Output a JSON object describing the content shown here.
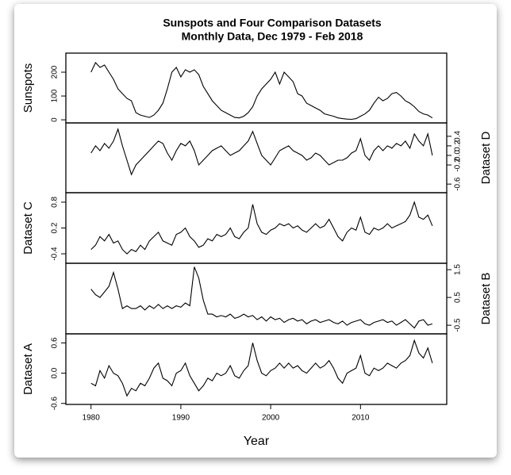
{
  "chart_data": {
    "type": "line",
    "title": "Sunspots and Four Comparison Datasets",
    "subtitle": "Monthly Data, Dec 1979 - Feb 2018",
    "xlabel": "Year",
    "color": "#000000",
    "xlim": [
      1977.2,
      2019.6
    ],
    "xticks": [
      1980,
      1990,
      2000,
      2010
    ],
    "x": [
      1980,
      1980.5,
      1981,
      1981.5,
      1982,
      1982.5,
      1983,
      1983.5,
      1984,
      1984.5,
      1985,
      1985.5,
      1986,
      1986.5,
      1987,
      1987.5,
      1988,
      1988.5,
      1989,
      1989.5,
      1990,
      1990.5,
      1991,
      1991.5,
      1992,
      1992.5,
      1993,
      1993.5,
      1994,
      1994.5,
      1995,
      1995.5,
      1996,
      1996.5,
      1997,
      1997.5,
      1998,
      1998.5,
      1999,
      1999.5,
      2000,
      2000.5,
      2001,
      2001.5,
      2002,
      2002.5,
      2003,
      2003.5,
      2004,
      2004.5,
      2005,
      2005.5,
      2006,
      2006.5,
      2007,
      2007.5,
      2008,
      2008.5,
      2009,
      2009.5,
      2010,
      2010.5,
      2011,
      2011.5,
      2012,
      2012.5,
      2013,
      2013.5,
      2014,
      2014.5,
      2015,
      2015.5,
      2016,
      2016.5,
      2017,
      2017.5,
      2018
    ],
    "series": [
      {
        "name": "Sunspots",
        "side": "left",
        "ylim": [
          -13,
          280
        ],
        "yticks": [
          0,
          100,
          200
        ],
        "values": [
          200,
          240,
          220,
          230,
          200,
          170,
          130,
          110,
          90,
          80,
          30,
          20,
          15,
          10,
          20,
          40,
          70,
          130,
          200,
          220,
          180,
          210,
          200,
          210,
          190,
          140,
          110,
          80,
          60,
          40,
          30,
          20,
          10,
          8,
          15,
          30,
          55,
          100,
          130,
          150,
          170,
          200,
          150,
          200,
          180,
          160,
          110,
          100,
          70,
          60,
          50,
          40,
          25,
          20,
          15,
          8,
          5,
          3,
          2,
          5,
          15,
          25,
          40,
          70,
          95,
          80,
          90,
          110,
          115,
          100,
          80,
          70,
          55,
          35,
          25,
          20,
          8
        ]
      },
      {
        "name": "Dataset D",
        "side": "right",
        "ylim": [
          -0.78,
          0.68
        ],
        "yticks": [
          -0.6,
          -0.2,
          {
            "value": 0,
            "label": "0.0"
          },
          0.2,
          0.4
        ],
        "values": [
          0.05,
          0.2,
          0.1,
          0.25,
          0.15,
          0.3,
          0.55,
          0.2,
          -0.1,
          -0.4,
          -0.2,
          -0.1,
          0.0,
          0.1,
          0.2,
          0.3,
          0.25,
          0.05,
          -0.1,
          0.1,
          0.25,
          0.2,
          0.3,
          0.1,
          -0.2,
          -0.1,
          0.0,
          0.1,
          0.15,
          0.2,
          0.1,
          0.0,
          0.05,
          0.1,
          0.2,
          0.3,
          0.5,
          0.25,
          0.0,
          -0.1,
          -0.2,
          -0.05,
          0.1,
          0.15,
          0.2,
          0.1,
          0.05,
          0.0,
          -0.1,
          -0.05,
          0.05,
          0.0,
          -0.1,
          -0.2,
          -0.15,
          -0.1,
          -0.1,
          -0.05,
          0.05,
          0.1,
          0.35,
          0.0,
          -0.1,
          0.1,
          0.2,
          0.1,
          0.2,
          0.15,
          0.25,
          0.2,
          0.3,
          0.15,
          0.45,
          0.3,
          0.2,
          0.45,
          0.0
        ]
      },
      {
        "name": "Dataset C",
        "side": "left",
        "ylim": [
          -0.62,
          1.02
        ],
        "yticks": [
          -0.4,
          0.2,
          0.8
        ],
        "values": [
          -0.3,
          -0.2,
          0.0,
          -0.1,
          0.05,
          -0.15,
          -0.1,
          -0.3,
          -0.4,
          -0.3,
          -0.35,
          -0.2,
          -0.3,
          -0.1,
          0.0,
          0.1,
          -0.1,
          -0.15,
          -0.2,
          0.05,
          0.1,
          0.2,
          0.0,
          -0.1,
          -0.25,
          -0.2,
          -0.05,
          -0.1,
          0.05,
          0.0,
          0.05,
          0.2,
          0.0,
          -0.05,
          0.1,
          0.2,
          0.75,
          0.3,
          0.1,
          0.05,
          0.15,
          0.2,
          0.3,
          0.25,
          0.3,
          0.2,
          0.25,
          0.15,
          0.1,
          0.2,
          0.3,
          0.2,
          0.25,
          0.4,
          0.2,
          0.0,
          -0.1,
          0.1,
          0.2,
          0.15,
          0.45,
          0.1,
          0.05,
          0.2,
          0.15,
          0.2,
          0.3,
          0.2,
          0.25,
          0.3,
          0.35,
          0.5,
          0.8,
          0.45,
          0.4,
          0.5,
          0.25
        ]
      },
      {
        "name": "Dataset B",
        "side": "right",
        "ylim": [
          -0.81,
          1.73
        ],
        "yticks": [
          -0.5,
          0.5,
          1.5
        ],
        "values": [
          0.8,
          0.6,
          0.5,
          0.7,
          0.9,
          1.4,
          0.8,
          0.1,
          0.2,
          0.1,
          0.1,
          0.2,
          0.05,
          0.2,
          0.1,
          0.25,
          0.1,
          0.2,
          0.1,
          0.2,
          0.15,
          0.3,
          0.2,
          1.6,
          1.2,
          0.4,
          -0.1,
          -0.1,
          -0.2,
          -0.15,
          -0.2,
          -0.1,
          -0.25,
          -0.2,
          -0.1,
          -0.2,
          -0.15,
          -0.3,
          -0.2,
          -0.35,
          -0.2,
          -0.3,
          -0.25,
          -0.4,
          -0.3,
          -0.25,
          -0.35,
          -0.3,
          -0.45,
          -0.35,
          -0.3,
          -0.4,
          -0.35,
          -0.3,
          -0.4,
          -0.45,
          -0.35,
          -0.5,
          -0.4,
          -0.35,
          -0.3,
          -0.45,
          -0.5,
          -0.4,
          -0.35,
          -0.3,
          -0.4,
          -0.35,
          -0.5,
          -0.4,
          -0.3,
          -0.45,
          -0.6,
          -0.35,
          -0.3,
          -0.5,
          -0.45
        ]
      },
      {
        "name": "Dataset A",
        "side": "left",
        "ylim": [
          -0.62,
          0.78
        ],
        "yticks": [
          -0.6,
          {
            "value": 0,
            "label": "0.0"
          },
          0.6
        ],
        "values": [
          -0.2,
          -0.25,
          0.05,
          -0.1,
          0.15,
          0.0,
          -0.05,
          -0.2,
          -0.45,
          -0.3,
          -0.35,
          -0.2,
          -0.25,
          -0.1,
          0.1,
          0.2,
          -0.1,
          -0.15,
          -0.25,
          0.0,
          0.05,
          0.2,
          -0.05,
          -0.2,
          -0.35,
          -0.25,
          -0.1,
          -0.15,
          0.0,
          -0.05,
          0.0,
          0.15,
          -0.05,
          -0.1,
          0.05,
          0.15,
          0.6,
          0.25,
          0.0,
          -0.05,
          0.05,
          0.1,
          0.2,
          0.1,
          0.2,
          0.1,
          0.15,
          0.05,
          0.0,
          0.1,
          0.2,
          0.1,
          0.15,
          0.25,
          0.1,
          -0.1,
          -0.2,
          0.0,
          0.05,
          0.1,
          0.35,
          0.0,
          -0.05,
          0.1,
          0.05,
          0.1,
          0.2,
          0.15,
          0.1,
          0.2,
          0.25,
          0.35,
          0.65,
          0.4,
          0.3,
          0.5,
          0.2
        ]
      }
    ]
  }
}
